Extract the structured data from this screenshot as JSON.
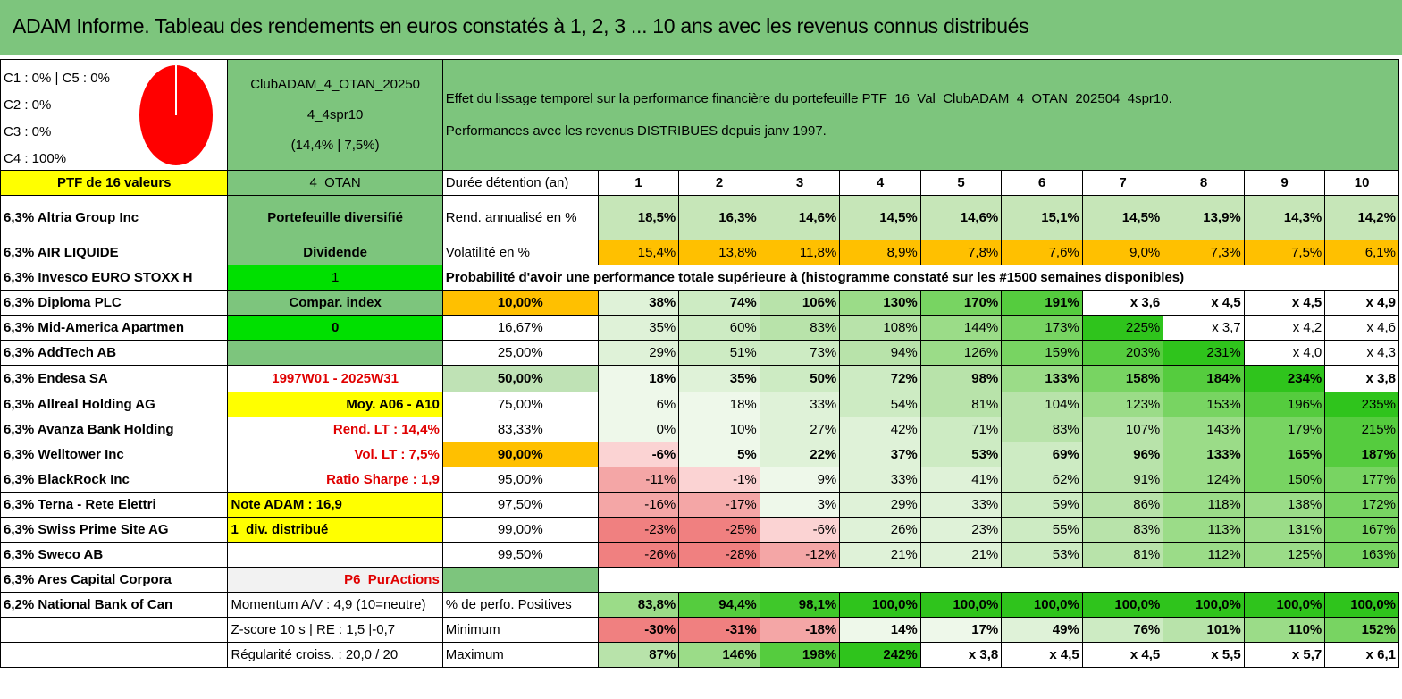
{
  "title": "ADAM Informe. Tableau des rendements en euros constatés à 1, 2, 3 ... 10 ans avec les revenus connus distribués",
  "pie": {
    "labels": [
      "C1 : 0% | C5 : 0%",
      "C2 : 0%",
      "C3 : 0%",
      "C4 : 100%"
    ],
    "color": "#ff0000"
  },
  "fund": {
    "name_line1": "ClubADAM_4_OTAN_20250",
    "name_line2": "4_4spr10",
    "name_line3": "(14,4% | 7,5%)"
  },
  "description": {
    "line1": "Effet du lissage temporel sur la performance financière du portefeuille PTF_16_Val_ClubADAM_4_OTAN_202504_4spr10.",
    "line2": "Performances avec les revenus DISTRIBUES depuis janv 1997."
  },
  "ptf_label": "PTF de 16 valeurs",
  "ptf_code": "4_OTAN",
  "holdings": [
    "6,3% Altria Group Inc",
    "6,3% AIR LIQUIDE",
    "6,3% Invesco EURO STOXX H",
    "6,3% Diploma PLC",
    "6,3% Mid-America Apartmen",
    "6,3% AddTech AB",
    "6,3% Endesa SA",
    "6,3% Allreal Holding AG",
    "6,3% Avanza Bank Holding",
    "6,3% Welltower Inc",
    "6,3% BlackRock Inc",
    "6,3% Terna - Rete Elettri",
    "6,3% Swiss Prime Site AG",
    "6,3% Sweco AB",
    "6,3% Ares Capital Corpora",
    "6,2% National Bank of Can"
  ],
  "info": {
    "portefeuille": "Portefeuille diversifié",
    "dividende": "Dividende",
    "one": "1",
    "compar": "Compar. index",
    "zero": "0",
    "period": "1997W01 - 2025W31",
    "moy": "Moy. A06 - A10",
    "rend_lt": "Rend. LT : 14,4%",
    "vol_lt": "Vol. LT : 7,5%",
    "sharpe": "Ratio Sharpe : 1,9",
    "note": "Note ADAM : 16,9",
    "div": "1_div. distribué",
    "p6": "P6_PurActions",
    "momentum": "Momentum A/V : 4,9 (10=neutre)",
    "zscore": "Z-score 10 s | RE : 1,5 |-0,7",
    "regularite": "Régularité croiss. : 20,0 / 20"
  },
  "table": {
    "duree_label": "Durée détention (an)",
    "years": [
      "1",
      "2",
      "3",
      "4",
      "5",
      "6",
      "7",
      "8",
      "9",
      "10"
    ],
    "rend_label": "Rend. annualisé en %",
    "rend": [
      "18,5%",
      "16,3%",
      "14,6%",
      "14,5%",
      "14,6%",
      "15,1%",
      "14,5%",
      "13,9%",
      "14,3%",
      "14,2%"
    ],
    "vol_label": "Volatilité en %",
    "vol": [
      "15,4%",
      "13,8%",
      "11,8%",
      "8,9%",
      "7,8%",
      "7,6%",
      "9,0%",
      "7,3%",
      "7,5%",
      "6,1%"
    ],
    "proba_label": "Probabilité d'avoir une performance totale supérieure à (histogramme constaté sur les #1500 semaines disponibles)",
    "rows": [
      {
        "p": "10,00%",
        "v": [
          "38%",
          "74%",
          "106%",
          "130%",
          "170%",
          "191%",
          "x 3,6",
          "x 4,5",
          "x 4,5",
          "x 4,9"
        ]
      },
      {
        "p": "16,67%",
        "v": [
          "35%",
          "60%",
          "83%",
          "108%",
          "144%",
          "173%",
          "225%",
          "x 3,7",
          "x 4,2",
          "x 4,6"
        ]
      },
      {
        "p": "25,00%",
        "v": [
          "29%",
          "51%",
          "73%",
          "94%",
          "126%",
          "159%",
          "203%",
          "231%",
          "x 4,0",
          "x 4,3"
        ]
      },
      {
        "p": "50,00%",
        "v": [
          "18%",
          "35%",
          "50%",
          "72%",
          "98%",
          "133%",
          "158%",
          "184%",
          "234%",
          "x 3,8"
        ]
      },
      {
        "p": "75,00%",
        "v": [
          "6%",
          "18%",
          "33%",
          "54%",
          "81%",
          "104%",
          "123%",
          "153%",
          "196%",
          "235%"
        ]
      },
      {
        "p": "83,33%",
        "v": [
          "0%",
          "10%",
          "27%",
          "42%",
          "71%",
          "83%",
          "107%",
          "143%",
          "179%",
          "215%"
        ]
      },
      {
        "p": "90,00%",
        "v": [
          "-6%",
          "5%",
          "22%",
          "37%",
          "53%",
          "69%",
          "96%",
          "133%",
          "165%",
          "187%"
        ]
      },
      {
        "p": "95,00%",
        "v": [
          "-11%",
          "-1%",
          "9%",
          "33%",
          "41%",
          "62%",
          "91%",
          "124%",
          "150%",
          "177%"
        ]
      },
      {
        "p": "97,50%",
        "v": [
          "-16%",
          "-17%",
          "3%",
          "29%",
          "33%",
          "59%",
          "86%",
          "118%",
          "138%",
          "172%"
        ]
      },
      {
        "p": "99,00%",
        "v": [
          "-23%",
          "-25%",
          "-6%",
          "26%",
          "23%",
          "55%",
          "83%",
          "113%",
          "131%",
          "167%"
        ]
      },
      {
        "p": "99,50%",
        "v": [
          "-26%",
          "-28%",
          "-12%",
          "21%",
          "21%",
          "53%",
          "81%",
          "112%",
          "125%",
          "163%"
        ]
      }
    ],
    "pos_label": "% de perfo. Positives",
    "pos": [
      "83,8%",
      "94,4%",
      "98,1%",
      "100,0%",
      "100,0%",
      "100,0%",
      "100,0%",
      "100,0%",
      "100,0%",
      "100,0%"
    ],
    "min_label": "Minimum",
    "min": [
      "-30%",
      "-31%",
      "-18%",
      "14%",
      "17%",
      "49%",
      "76%",
      "101%",
      "110%",
      "152%"
    ],
    "max_label": "Maximum",
    "max": [
      "87%",
      "146%",
      "198%",
      "242%",
      "x 3,8",
      "x 4,5",
      "x 4,5",
      "x 5,5",
      "x 5,7",
      "x 6,1"
    ]
  }
}
